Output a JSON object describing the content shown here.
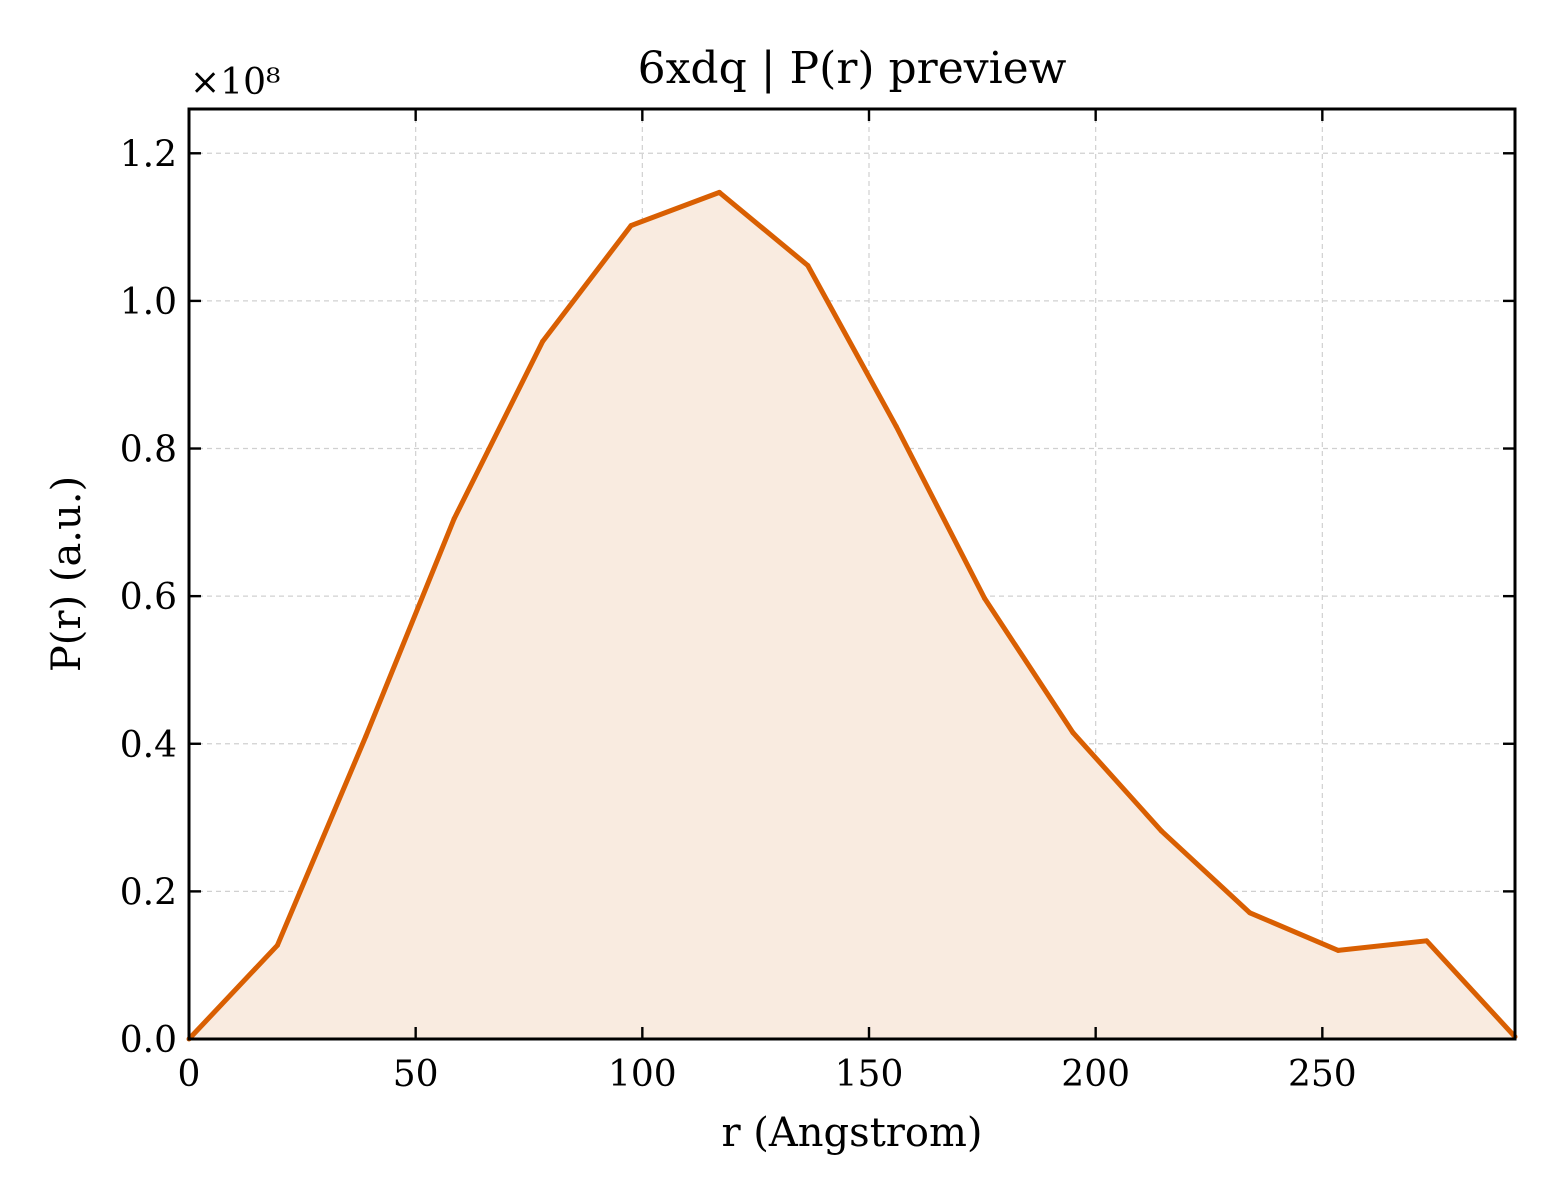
{
  "chart_data": {
    "type": "area",
    "title": "6xdq | P(r) preview",
    "xlabel": "r (Angstrom)",
    "ylabel": "P(r) (a.u.)",
    "y_scale_label": "×10⁸",
    "y_multiplier": 100000000,
    "xlim": [
      0,
      292.5
    ],
    "ylim": [
      0,
      1.26
    ],
    "x_ticks": [
      0,
      50,
      100,
      150,
      200,
      250
    ],
    "x_tick_labels": [
      "0",
      "50",
      "100",
      "150",
      "200",
      "250"
    ],
    "y_ticks": [
      0.0,
      0.2,
      0.4,
      0.6,
      0.8,
      1.0,
      1.2
    ],
    "y_tick_labels": [
      "0.0",
      "0.2",
      "0.4",
      "0.6",
      "0.8",
      "1.0",
      "1.2"
    ],
    "grid": true,
    "series": [
      {
        "x": [
          0,
          19.5,
          39,
          58.5,
          78,
          97.5,
          117,
          136.5,
          156,
          175.5,
          195,
          214.5,
          234,
          253.5,
          273,
          292.5
        ],
        "y": [
          0.0,
          0.127,
          0.41,
          0.705,
          0.945,
          1.102,
          1.147,
          1.048,
          0.83,
          0.597,
          0.415,
          0.282,
          0.171,
          0.12,
          0.133,
          0.003
        ],
        "color": "#d95f02",
        "fill": "#f9ebe0"
      }
    ]
  }
}
